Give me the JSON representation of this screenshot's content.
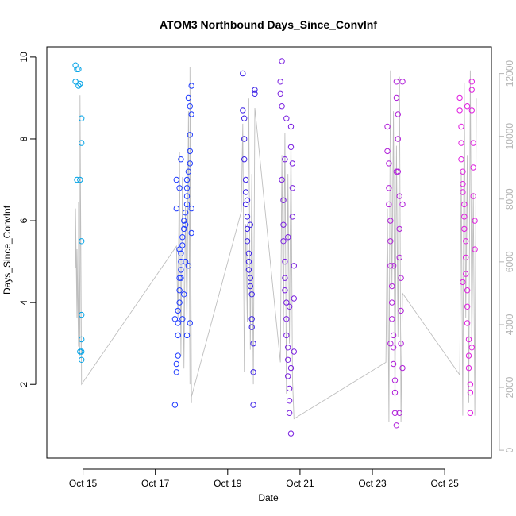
{
  "chart_data": {
    "type": "scatter",
    "title": "ATOM3 Northbound Days_Since_ConvInf",
    "xlabel": "Date",
    "ylabel": "Days_Since_ConvInf",
    "x_ticks": [
      "Oct 15",
      "Oct 17",
      "Oct 19",
      "Oct 21",
      "Oct 23",
      "Oct 25"
    ],
    "y_ticks": [
      "2",
      "4",
      "6",
      "8",
      "10"
    ],
    "y2_ticks": [
      "0",
      "2000",
      "4000",
      "6000",
      "8000",
      "10000",
      "12000"
    ],
    "xlim": [
      "2020-10-14 00:00",
      "2020-10-26 07:00"
    ],
    "ylim": [
      0.2,
      10.25
    ],
    "y2lim": [
      -250,
      12850
    ],
    "grid": false,
    "series": [
      {
        "name": "",
        "color": "#00a2e6",
        "x": [
          "2020-10-14 19:00",
          "2020-10-14 19:00",
          "2020-10-14 21:00",
          "2020-10-14 21:00",
          "2020-10-14 20:00",
          "2020-10-14 20:00",
          "2020-10-14 22:00",
          "2020-10-14 23:00",
          "2020-10-14 23:00",
          "2020-10-14 22:00",
          "2020-10-14 23:00",
          "2020-10-14 23:00",
          "2020-10-14 23:00",
          "2020-10-14 23:00",
          "2020-10-14 22:00",
          "2020-10-14 23:00"
        ],
        "y": [
          9.8,
          9.4,
          9.7,
          9.3,
          9.7,
          7.0,
          9.35,
          8.5,
          7.9,
          7.0,
          5.5,
          3.7,
          3.1,
          2.8,
          2.8,
          2.6
        ]
      },
      {
        "name": "",
        "color": "#1f3bff",
        "x": [
          "2020-10-17 13:00",
          "2020-10-17 14:00",
          "2020-10-17 14:00",
          "2020-10-17 15:00",
          "2020-10-17 15:00",
          "2020-10-17 15:00",
          "2020-10-17 15:00",
          "2020-10-17 16:00",
          "2020-10-17 16:00",
          "2020-10-17 16:00",
          "2020-10-17 17:00",
          "2020-10-17 17:00",
          "2020-10-17 17:00",
          "2020-10-17 18:00",
          "2020-10-17 18:00",
          "2020-10-17 19:00",
          "2020-10-17 19:00",
          "2020-10-17 20:00",
          "2020-10-17 21:00",
          "2020-10-17 21:00",
          "2020-10-17 21:00",
          "2020-10-17 21:00",
          "2020-10-17 22:00",
          "2020-10-17 23:00",
          "2020-10-17 23:00",
          "2020-10-17 23:00",
          "2020-10-18 00:00",
          "2020-10-18 00:00",
          "2020-10-17 22:00",
          "2020-10-17 23:00",
          "2020-10-17 14:00",
          "2020-10-17 14:00",
          "2020-10-17 16:00",
          "2020-10-17 16:00",
          "2020-10-17 17:00",
          "2020-10-17 17:00",
          "2020-10-17 19:00",
          "2020-10-17 20:00",
          "2020-10-17 20:00",
          "2020-10-17 18:00",
          "2020-10-17 21:00",
          "2020-10-17 22:00",
          "2020-10-18 00:00",
          "2020-10-17 23:00",
          "2020-10-18 00:00",
          "2020-10-17 13:00"
        ],
        "y": [
          1.5,
          2.3,
          2.5,
          2.7,
          3.2,
          3.5,
          3.8,
          4.0,
          4.3,
          4.6,
          4.8,
          5.0,
          5.2,
          5.4,
          5.6,
          5.8,
          6.0,
          6.2,
          6.4,
          6.6,
          6.8,
          7.0,
          7.2,
          7.4,
          7.7,
          8.1,
          8.6,
          9.3,
          9.0,
          8.8,
          6.3,
          7.0,
          5.3,
          6.8,
          4.6,
          7.5,
          4.2,
          5.0,
          5.9,
          3.6,
          3.2,
          4.9,
          6.3,
          3.5,
          5.7,
          3.6
        ]
      },
      {
        "name": "",
        "color": "#3a1fe6",
        "x": [
          "2020-10-19 10:00",
          "2020-10-19 10:00",
          "2020-10-19 11:00",
          "2020-10-19 11:00",
          "2020-10-19 11:00",
          "2020-10-19 12:00",
          "2020-10-19 12:00",
          "2020-10-19 12:00",
          "2020-10-19 13:00",
          "2020-10-19 13:00",
          "2020-10-19 13:00",
          "2020-10-19 14:00",
          "2020-10-19 14:00",
          "2020-10-19 14:00",
          "2020-10-19 15:00",
          "2020-10-19 15:00",
          "2020-10-19 16:00",
          "2020-10-19 16:00",
          "2020-10-19 16:00",
          "2020-10-19 17:00",
          "2020-10-19 17:00",
          "2020-10-19 17:00",
          "2020-10-19 18:00",
          "2020-10-19 18:00",
          "2020-10-19 15:00",
          "2020-10-19 13:00"
        ],
        "y": [
          8.7,
          9.6,
          8.5,
          8.0,
          7.5,
          7.0,
          6.7,
          6.4,
          6.1,
          5.8,
          5.5,
          5.2,
          5.0,
          4.8,
          4.6,
          4.4,
          4.2,
          3.6,
          3.4,
          3.0,
          2.3,
          1.5,
          9.1,
          9.2,
          5.9,
          6.5
        ]
      },
      {
        "name": "",
        "color": "#7a1fe0",
        "x": [
          "2020-10-20 11:00",
          "2020-10-20 11:00",
          "2020-10-20 12:00",
          "2020-10-20 12:00",
          "2020-10-20 12:00",
          "2020-10-20 13:00",
          "2020-10-20 13:00",
          "2020-10-20 13:00",
          "2020-10-20 14:00",
          "2020-10-20 14:00",
          "2020-10-20 14:00",
          "2020-10-20 15:00",
          "2020-10-20 15:00",
          "2020-10-20 15:00",
          "2020-10-20 16:00",
          "2020-10-20 16:00",
          "2020-10-20 16:00",
          "2020-10-20 17:00",
          "2020-10-20 17:00",
          "2020-10-20 17:00",
          "2020-10-20 18:00",
          "2020-10-20 18:00",
          "2020-10-20 18:00",
          "2020-10-20 19:00",
          "2020-10-20 19:00",
          "2020-10-20 19:00",
          "2020-10-20 20:00",
          "2020-10-20 20:00",
          "2020-10-20 20:00",
          "2020-10-20 14:00",
          "2020-10-20 15:00",
          "2020-10-20 16:00",
          "2020-10-20 17:00",
          "2020-10-20 18:00"
        ],
        "y": [
          9.4,
          9.1,
          9.9,
          8.8,
          7.0,
          6.5,
          5.9,
          5.5,
          5.0,
          4.6,
          4.3,
          4.0,
          3.6,
          3.2,
          2.9,
          2.6,
          2.2,
          1.9,
          1.6,
          1.3,
          0.8,
          7.8,
          8.3,
          7.4,
          6.8,
          6.1,
          4.9,
          4.1,
          2.8,
          7.5,
          8.5,
          5.6,
          3.9,
          2.4
        ]
      },
      {
        "name": "",
        "color": "#b01fd9",
        "x": [
          "2020-10-23 10:00",
          "2020-10-23 10:00",
          "2020-10-23 11:00",
          "2020-10-23 11:00",
          "2020-10-23 11:00",
          "2020-10-23 12:00",
          "2020-10-23 12:00",
          "2020-10-23 12:00",
          "2020-10-23 13:00",
          "2020-10-23 13:00",
          "2020-10-23 13:00",
          "2020-10-23 14:00",
          "2020-10-23 14:00",
          "2020-10-23 14:00",
          "2020-10-23 15:00",
          "2020-10-23 15:00",
          "2020-10-23 15:00",
          "2020-10-23 16:00",
          "2020-10-23 16:00",
          "2020-10-23 16:00",
          "2020-10-23 17:00",
          "2020-10-23 17:00",
          "2020-10-23 17:00",
          "2020-10-23 18:00",
          "2020-10-23 18:00",
          "2020-10-23 18:00",
          "2020-10-23 19:00",
          "2020-10-23 19:00",
          "2020-10-23 19:00",
          "2020-10-23 20:00",
          "2020-10-23 20:00",
          "2020-10-23 20:00",
          "2020-10-23 12:00",
          "2020-10-23 14:00",
          "2020-10-23 16:00",
          "2020-10-23 18:00"
        ],
        "y": [
          8.3,
          7.7,
          7.4,
          6.8,
          6.4,
          6.0,
          5.5,
          4.9,
          4.4,
          4.0,
          3.6,
          3.2,
          2.9,
          2.5,
          2.1,
          1.8,
          1.3,
          1.0,
          9.4,
          9.0,
          8.6,
          8.0,
          7.2,
          6.6,
          5.8,
          5.1,
          4.6,
          3.8,
          3.0,
          2.4,
          9.4,
          6.4,
          3.0,
          4.9,
          7.2,
          1.3
        ]
      },
      {
        "name": "",
        "color": "#e01fe0",
        "x": [
          "2020-10-25 10:00",
          "2020-10-25 10:00",
          "2020-10-25 11:00",
          "2020-10-25 11:00",
          "2020-10-25 11:00",
          "2020-10-25 12:00",
          "2020-10-25 12:00",
          "2020-10-25 12:00",
          "2020-10-25 13:00",
          "2020-10-25 13:00",
          "2020-10-25 13:00",
          "2020-10-25 14:00",
          "2020-10-25 14:00",
          "2020-10-25 14:00",
          "2020-10-25 15:00",
          "2020-10-25 15:00",
          "2020-10-25 15:00",
          "2020-10-25 16:00",
          "2020-10-25 16:00",
          "2020-10-25 16:00",
          "2020-10-25 17:00",
          "2020-10-25 17:00",
          "2020-10-25 17:00",
          "2020-10-25 18:00",
          "2020-10-25 18:00",
          "2020-10-25 18:00",
          "2020-10-25 19:00",
          "2020-10-25 19:00",
          "2020-10-25 19:00",
          "2020-10-25 20:00",
          "2020-10-25 20:00",
          "2020-10-25 12:00",
          "2020-10-25 15:00",
          "2020-10-25 18:00"
        ],
        "y": [
          9.0,
          8.7,
          8.3,
          7.9,
          7.5,
          7.2,
          6.9,
          6.7,
          6.4,
          6.1,
          5.8,
          5.5,
          5.1,
          4.7,
          4.3,
          3.9,
          3.5,
          3.1,
          2.7,
          2.4,
          2.0,
          1.8,
          1.3,
          9.2,
          9.4,
          8.7,
          7.9,
          7.3,
          6.6,
          6.0,
          5.3,
          4.5,
          8.8,
          2.9
        ]
      }
    ],
    "secondary_line": {
      "name": "",
      "color": "#bebebe",
      "x": [
        "2020-10-14 19:00",
        "2020-10-14 19:00",
        "2020-10-14 20:00",
        "2020-10-14 20:00",
        "2020-10-14 21:00",
        "2020-10-14 21:00",
        "2020-10-14 22:00",
        "2020-10-14 22:00",
        "2020-10-14 23:00",
        "2020-10-14 23:00",
        "2020-10-17 14:00",
        "2020-10-17 15:00",
        "2020-10-17 16:00",
        "2020-10-17 17:00",
        "2020-10-17 18:00",
        "2020-10-17 19:00",
        "2020-10-17 20:00",
        "2020-10-17 21:00",
        "2020-10-17 22:00",
        "2020-10-17 23:00",
        "2020-10-17 23:00",
        "2020-10-18 00:00",
        "2020-10-18 00:00",
        "2020-10-19 09:00",
        "2020-10-19 10:00",
        "2020-10-19 11:00",
        "2020-10-19 12:00",
        "2020-10-19 13:00",
        "2020-10-19 14:00",
        "2020-10-19 15:00",
        "2020-10-19 16:00",
        "2020-10-19 17:00",
        "2020-10-19 18:00",
        "2020-10-20 11:00",
        "2020-10-20 12:00",
        "2020-10-20 13:00",
        "2020-10-20 14:00",
        "2020-10-20 15:00",
        "2020-10-20 16:00",
        "2020-10-20 17:00",
        "2020-10-20 18:00",
        "2020-10-20 19:00",
        "2020-10-20 20:00",
        "2020-10-23 09:00",
        "2020-10-23 10:00",
        "2020-10-23 11:00",
        "2020-10-23 12:00",
        "2020-10-23 13:00",
        "2020-10-23 14:00",
        "2020-10-23 15:00",
        "2020-10-23 16:00",
        "2020-10-23 17:00",
        "2020-10-23 18:00",
        "2020-10-23 19:00",
        "2020-10-23 20:00",
        "2020-10-25 10:00",
        "2020-10-25 11:00",
        "2020-10-25 12:00",
        "2020-10-25 13:00",
        "2020-10-25 14:00",
        "2020-10-25 15:00",
        "2020-10-25 16:00",
        "2020-10-25 17:00",
        "2020-10-25 18:00",
        "2020-10-25 19:00",
        "2020-10-25 20:00",
        "2020-10-25 21:00"
      ],
      "y": [
        5800,
        7700,
        4200,
        6400,
        3300,
        7900,
        3000,
        11300,
        2300,
        2100,
        6500,
        4200,
        9500,
        3000,
        8700,
        2600,
        7800,
        4000,
        10800,
        2100,
        12200,
        1500,
        1700,
        7600,
        10400,
        2500,
        7200,
        4100,
        11200,
        3200,
        8800,
        2100,
        10900,
        2800,
        9400,
        3700,
        10100,
        1800,
        8800,
        3400,
        10000,
        2300,
        1000,
        2800,
        7700,
        900,
        12100,
        5200,
        10800,
        1300,
        9700,
        3600,
        11900,
        900,
        5000,
        2400,
        8900,
        1100,
        11700,
        4200,
        9400,
        1500,
        12100,
        3200,
        8200,
        1100,
        11200
      ]
    }
  }
}
